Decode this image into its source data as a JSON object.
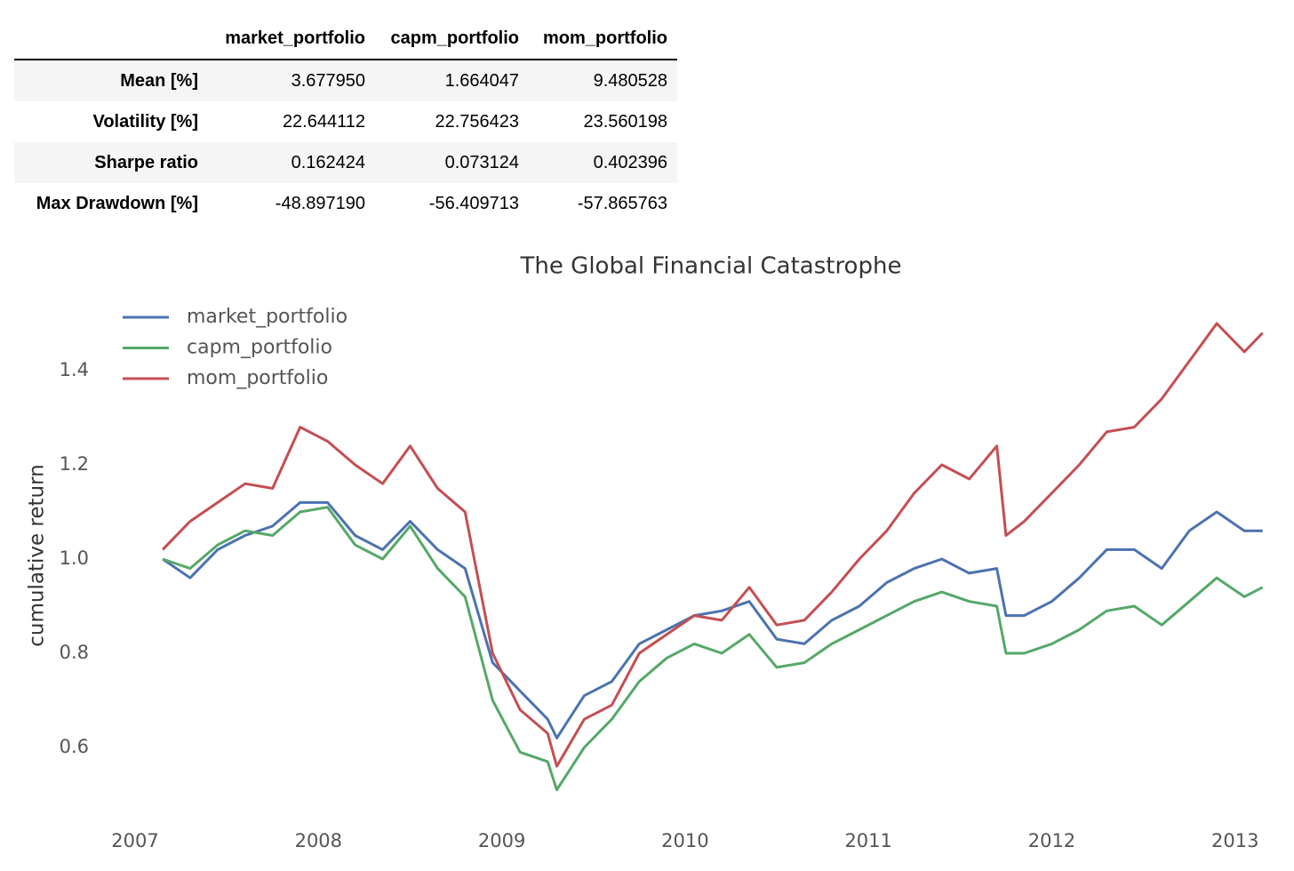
{
  "table": {
    "columns": [
      "market_portfolio",
      "capm_portfolio",
      "mom_portfolio"
    ],
    "rows": [
      {
        "label": "Mean [%]",
        "values": [
          "3.677950",
          "1.664047",
          "9.480528"
        ]
      },
      {
        "label": "Volatility [%]",
        "values": [
          "22.644112",
          "22.756423",
          "23.560198"
        ]
      },
      {
        "label": "Sharpe ratio",
        "values": [
          "0.162424",
          "0.073124",
          "0.402396"
        ]
      },
      {
        "label": "Max Drawdown [%]",
        "values": [
          "-48.897190",
          "-56.409713",
          "-57.865763"
        ]
      }
    ]
  },
  "chart_data": {
    "type": "line",
    "title": "The Global Financial Catastrophe",
    "y_label": "cumulative return",
    "x": [
      2007.15,
      2007.3,
      2007.45,
      2007.6,
      2007.75,
      2007.9,
      2008.05,
      2008.2,
      2008.35,
      2008.5,
      2008.65,
      2008.8,
      2008.95,
      2009.1,
      2009.25,
      2009.3,
      2009.45,
      2009.6,
      2009.75,
      2009.9,
      2010.05,
      2010.2,
      2010.35,
      2010.5,
      2010.65,
      2010.8,
      2010.95,
      2011.1,
      2011.25,
      2011.4,
      2011.55,
      2011.7,
      2011.75,
      2011.85,
      2012.0,
      2012.15,
      2012.3,
      2012.45,
      2012.6,
      2012.75,
      2012.9,
      2013.05,
      2013.15
    ],
    "series": [
      {
        "name": "market_portfolio",
        "color": "#4c72b0",
        "values": [
          1.0,
          0.96,
          1.02,
          1.05,
          1.07,
          1.12,
          1.12,
          1.05,
          1.02,
          1.08,
          1.02,
          0.98,
          0.78,
          0.72,
          0.66,
          0.62,
          0.71,
          0.74,
          0.82,
          0.85,
          0.88,
          0.89,
          0.91,
          0.83,
          0.82,
          0.87,
          0.9,
          0.95,
          0.98,
          1.0,
          0.97,
          0.98,
          0.88,
          0.88,
          0.91,
          0.96,
          1.02,
          1.02,
          0.98,
          1.06,
          1.1,
          1.06,
          1.06
        ]
      },
      {
        "name": "capm_portfolio",
        "color": "#55a868",
        "values": [
          1.0,
          0.98,
          1.03,
          1.06,
          1.05,
          1.1,
          1.11,
          1.03,
          1.0,
          1.07,
          0.98,
          0.92,
          0.7,
          0.59,
          0.57,
          0.51,
          0.6,
          0.66,
          0.74,
          0.79,
          0.82,
          0.8,
          0.84,
          0.77,
          0.78,
          0.82,
          0.85,
          0.88,
          0.91,
          0.93,
          0.91,
          0.9,
          0.8,
          0.8,
          0.82,
          0.85,
          0.89,
          0.9,
          0.86,
          0.91,
          0.96,
          0.92,
          0.94
        ]
      },
      {
        "name": "mom_portfolio",
        "color": "#c44e52",
        "values": [
          1.02,
          1.08,
          1.12,
          1.16,
          1.15,
          1.28,
          1.25,
          1.2,
          1.16,
          1.24,
          1.15,
          1.1,
          0.8,
          0.68,
          0.63,
          0.56,
          0.66,
          0.69,
          0.8,
          0.84,
          0.88,
          0.87,
          0.94,
          0.86,
          0.87,
          0.93,
          1.0,
          1.06,
          1.14,
          1.2,
          1.17,
          1.24,
          1.05,
          1.08,
          1.14,
          1.2,
          1.27,
          1.28,
          1.34,
          1.42,
          1.5,
          1.44,
          1.48
        ]
      }
    ],
    "xlim": [
      2006.9,
      2013.2
    ],
    "xticks": [
      2007,
      2008,
      2009,
      2010,
      2011,
      2012,
      2013
    ],
    "ylim": [
      0.45,
      1.57
    ],
    "yticks": [
      0.6,
      0.8,
      {
        "value": 1,
        "label": "1.0"
      },
      1.2,
      1.4
    ],
    "grid": false,
    "legend": "upper left"
  }
}
